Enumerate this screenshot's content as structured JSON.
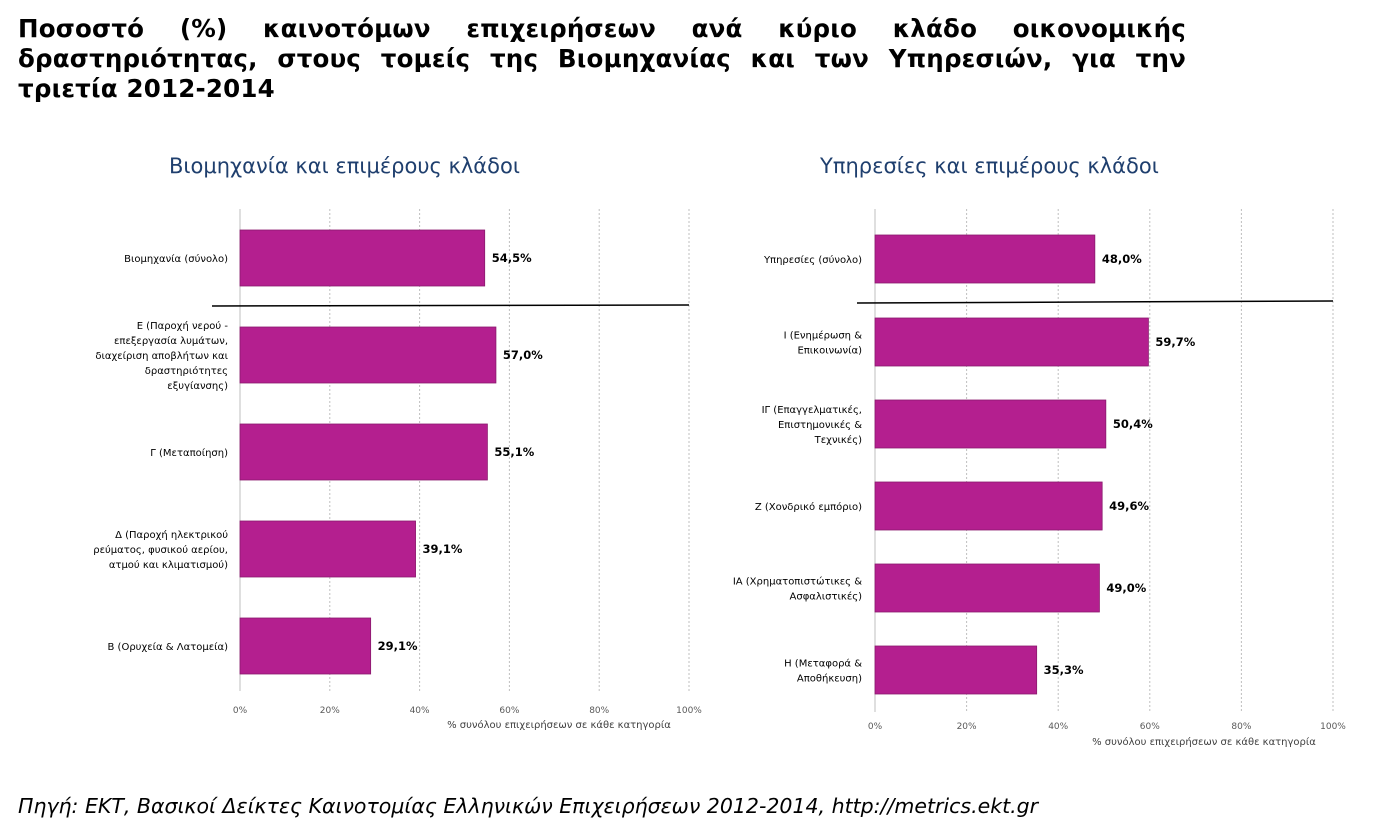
{
  "page": {
    "title": "Ποσοστό (%) καινοτόμων επιχειρήσεων ανά κύριο κλάδο οικονομικής δραστηριότητας, στους τομείς της Βιομηχανίας και των Υπηρεσιών, για την τριετία 2012-2014",
    "source": "Πηγή: ΕΚΤ, Βασικοί Δείκτες Καινοτομίας Ελληνικών Επιχειρήσεων 2012-2014, http://metrics.ekt.gr"
  },
  "chart_data": [
    {
      "type": "bar",
      "orientation": "horizontal",
      "title": "Βιομηχανία και επιμέρους κλάδοι",
      "categories": [
        [
          "Βιομηχανία (σύνολο)"
        ],
        [
          "Ε (Παροχή νερού -",
          "επεξεργασία λυμάτων,",
          "διαχείριση αποβλήτων και",
          "δραστηριότητες",
          "εξυγίανσης)"
        ],
        [
          "Γ (Μεταποίηση)"
        ],
        [
          "Δ (Παροχή ηλεκτρικού",
          "ρεύματος, φυσικού αερίου,",
          "ατμού και κλιματισμού)"
        ],
        [
          "Β (Ορυχεία & Λατομεία)"
        ]
      ],
      "values": [
        54.5,
        57.0,
        55.1,
        39.1,
        29.1
      ],
      "value_labels": [
        "54,5%",
        "57,0%",
        "55,1%",
        "39,1%",
        "29,1%"
      ],
      "xlabel": "% συνόλου επιχειρήσεων σε κάθε κατηγορία",
      "xlim": [
        0,
        100
      ],
      "ticks": [
        "0%",
        "20%",
        "40%",
        "60%",
        "80%",
        "100%"
      ],
      "bar_color": "#b41f8f",
      "separator_after_index": 0
    },
    {
      "type": "bar",
      "orientation": "horizontal",
      "title": "Υπηρεσίες και επιμέρους κλάδοι",
      "categories": [
        [
          "Υπηρεσίες (σύνολο)"
        ],
        [
          "Ι (Ενημέρωση &",
          "Επικοινωνία)"
        ],
        [
          "ΙΓ (Επαγγελματικές,",
          "Επιστημονικές &",
          "Τεχνικές)"
        ],
        [
          "Ζ (Χονδρικό εμπόριο)"
        ],
        [
          "ΙΑ (Χρηματοπιστώτικες &",
          "Ασφαλιστικές)"
        ],
        [
          "Η (Μεταφορά &",
          "Αποθήκευση)"
        ]
      ],
      "values": [
        48.0,
        59.7,
        50.4,
        49.6,
        49.0,
        35.3
      ],
      "value_labels": [
        "48,0%",
        "59,7%",
        "50,4%",
        "49,6%",
        "49,0%",
        "35,3%"
      ],
      "xlabel": "% συνόλου επιχειρήσεων σε κάθε κατηγορία",
      "xlim": [
        0,
        100
      ],
      "ticks": [
        "0%",
        "20%",
        "40%",
        "60%",
        "80%",
        "100%"
      ],
      "bar_color": "#b41f8f",
      "separator_after_index": 0
    }
  ]
}
